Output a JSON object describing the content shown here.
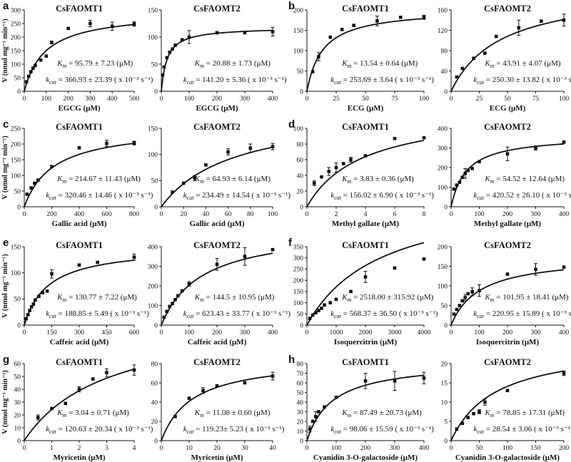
{
  "chart_data": [
    {
      "panel_label": "a",
      "type": "scatter",
      "title": "CsFAOMT1",
      "xlabel": "EGCG  (μM)",
      "ylabel": "V (nmol mg⁻¹ min⁻¹)",
      "xlim": [
        0,
        500
      ],
      "ylim": [
        0,
        300
      ],
      "xticks": [
        0,
        100,
        200,
        300,
        400,
        500
      ],
      "yticks": [
        0,
        50,
        100,
        150,
        200,
        250,
        300
      ],
      "x": [
        10,
        20,
        30,
        40,
        50,
        75,
        100,
        125,
        200,
        300,
        400,
        500
      ],
      "y": [
        35,
        55,
        72,
        85,
        95,
        115,
        130,
        180,
        232,
        250,
        240,
        248
      ],
      "err": [
        0,
        0,
        0,
        0,
        0,
        0,
        0,
        5,
        0,
        12,
        15,
        8
      ],
      "fit": {
        "vmax": 293.5,
        "km": 95.79
      },
      "km_text": "= 95.79 ± 7.23 (μM)",
      "kcat_text": "= 366.93 ± 23.39 ( x 10⁻³ s⁻¹)"
    },
    {
      "panel_label": "",
      "type": "scatter",
      "title": "CsFAOMT2",
      "xlabel": "EGCG  (μM)",
      "ylabel": "",
      "xlim": [
        0,
        400
      ],
      "ylim": [
        0,
        150
      ],
      "xticks": [
        0,
        100,
        200,
        300,
        400
      ],
      "yticks": [
        0,
        50,
        100,
        150
      ],
      "x": [
        5,
        10,
        20,
        30,
        40,
        50,
        75,
        100,
        200,
        300,
        400
      ],
      "y": [
        30,
        45,
        62,
        72,
        78,
        85,
        95,
        100,
        108,
        108,
        110
      ],
      "err": [
        0,
        0,
        0,
        0,
        0,
        0,
        0,
        12,
        0,
        0,
        8
      ],
      "fit": {
        "vmax": 118.2,
        "km": 20.88
      },
      "km_text": "= 20.88 ± 1.73 (μM)",
      "kcat_text": "= 141.20 ± 5.36 ( x 10⁻³ s⁻¹)"
    },
    {
      "panel_label": "b",
      "type": "scatter",
      "title": "CsFAOMT1",
      "xlabel": "ECG  (μM)",
      "ylabel": "",
      "xlim": [
        0,
        100
      ],
      "ylim": [
        0,
        200
      ],
      "xticks": [
        0,
        25,
        50,
        75,
        100
      ],
      "yticks": [
        0,
        50,
        100,
        150,
        200
      ],
      "x": [
        5,
        10,
        20,
        30,
        40,
        60,
        80,
        100
      ],
      "y": [
        48,
        85,
        133,
        152,
        162,
        173,
        182,
        182
      ],
      "err": [
        0,
        10,
        0,
        0,
        0,
        12,
        0,
        5
      ],
      "fit": {
        "vmax": 203,
        "km": 13.54
      },
      "km_text": "= 13.54 ± 0.64 (μM)",
      "kcat_text": "= 253.69 ± 3.64 ( x 10⁻³ s⁻¹)"
    },
    {
      "panel_label": "",
      "type": "scatter",
      "title": "CsFAOMT2",
      "xlabel": "ECG  (μM)",
      "ylabel": "",
      "xlim": [
        0,
        100
      ],
      "ylim": [
        0,
        160
      ],
      "xticks": [
        0,
        25,
        50,
        75,
        100
      ],
      "yticks": [
        0,
        40,
        80,
        120,
        160
      ],
      "x": [
        5,
        10,
        20,
        30,
        40,
        60,
        80,
        100
      ],
      "y": [
        28,
        45,
        65,
        75,
        108,
        125,
        138,
        140
      ],
      "err": [
        0,
        0,
        0,
        0,
        0,
        15,
        0,
        12
      ],
      "fit": {
        "vmax": 203,
        "km": 43.91
      },
      "km_text": "= 43.91 ± 4.07 (μM)",
      "kcat_text": "= 250.30 ± 13.82 ( x 10⁻³ s⁻¹)"
    },
    {
      "panel_label": "c",
      "type": "scatter",
      "title": "CsFAOMT1",
      "xlabel": "Gallic acid  (μM)",
      "ylabel": "V (nmol mg⁻¹ min⁻¹)",
      "xlim": [
        0,
        800
      ],
      "ylim": [
        0,
        250
      ],
      "xticks": [
        0,
        200,
        400,
        600,
        800
      ],
      "yticks": [
        0,
        50,
        100,
        150,
        200,
        250
      ],
      "x": [
        20,
        50,
        75,
        100,
        200,
        400,
        600,
        800
      ],
      "y": [
        40,
        60,
        75,
        85,
        128,
        188,
        202,
        203
      ],
      "err": [
        0,
        0,
        0,
        0,
        0,
        0,
        10,
        6
      ],
      "fit": {
        "vmax": 256.6,
        "km": 214.67
      },
      "km_text": "= 214.67 ± 11.43 (μM)",
      "kcat_text": "= 320.46 ± 14.46 ( x 10⁻³ s⁻¹)"
    },
    {
      "panel_label": "",
      "type": "scatter",
      "title": "CsFAOMT2",
      "xlabel": "Gallic acid  (μM)",
      "ylabel": "",
      "xlim": [
        0,
        100
      ],
      "ylim": [
        0,
        150
      ],
      "xticks": [
        0,
        20,
        40,
        60,
        80,
        100
      ],
      "yticks": [
        0,
        50,
        100,
        150
      ],
      "x": [
        10,
        20,
        30,
        40,
        60,
        80,
        100
      ],
      "y": [
        28,
        45,
        55,
        80,
        105,
        112,
        115
      ],
      "err": [
        0,
        0,
        5,
        0,
        6,
        8,
        6
      ],
      "fit": {
        "vmax": 187.8,
        "km": 64.93
      },
      "km_text": "= 64.93 ± 6.14 (μM)",
      "kcat_text": "= 234.49 ± 14.54 ( x 10⁻³ s⁻¹)"
    },
    {
      "panel_label": "d",
      "type": "scatter",
      "title": "CsFAOMT1",
      "xlabel": "Methyl gallate  (μM)",
      "ylabel": "",
      "xlim": [
        0,
        8
      ],
      "ylim": [
        0,
        100
      ],
      "xticks": [
        0,
        2,
        4,
        6,
        8
      ],
      "yticks": [
        0,
        20,
        40,
        60,
        80,
        100
      ],
      "x": [
        0.5,
        1,
        1.5,
        2,
        2.5,
        3,
        4,
        6,
        8
      ],
      "y": [
        30,
        38,
        45,
        50,
        55,
        60,
        65,
        87,
        88
      ],
      "err": [
        3,
        0,
        5,
        6,
        0,
        3,
        0,
        0,
        0
      ],
      "fit": {
        "vmax": 125,
        "km": 3.83
      },
      "km_text": "= 3.83 ± 0.36 (μM)",
      "kcat_text": "= 156.02 ± 6.90 ( x 10⁻³ s⁻¹)"
    },
    {
      "panel_label": "",
      "type": "scatter",
      "title": "CsFAOMT2",
      "xlabel": "Methyl gallate  (μM)",
      "ylabel": "",
      "xlim": [
        0,
        400
      ],
      "ylim": [
        0,
        400
      ],
      "xticks": [
        0,
        100,
        200,
        300,
        400
      ],
      "yticks": [
        0,
        100,
        200,
        300,
        400
      ],
      "x": [
        10,
        20,
        30,
        40,
        50,
        60,
        75,
        100,
        200,
        300,
        400
      ],
      "y": [
        90,
        110,
        125,
        150,
        170,
        185,
        195,
        230,
        270,
        300,
        330
      ],
      "err": [
        0,
        0,
        0,
        0,
        25,
        0,
        0,
        0,
        35,
        10,
        0
      ],
      "fit": {
        "vmax": 364,
        "km": 54.52
      },
      "km_text": "= 54.52 ± 12.64 (μM)",
      "kcat_text": "= 420.52 ± 26.10 ( x 10⁻³ s⁻¹)"
    },
    {
      "panel_label": "e",
      "type": "scatter",
      "title": "CsFAOMT1",
      "xlabel": "Caffeic acid  (μM)",
      "ylabel": "V (nmol mg⁻¹ min⁻¹)",
      "xlim": [
        0,
        600
      ],
      "ylim": [
        0,
        150
      ],
      "xticks": [
        0,
        150,
        300,
        450,
        600
      ],
      "yticks": [
        0,
        50,
        100,
        150
      ],
      "x": [
        10,
        20,
        30,
        40,
        50,
        60,
        80,
        100,
        125,
        150,
        300,
        400,
        600
      ],
      "y": [
        12,
        20,
        28,
        35,
        40,
        48,
        55,
        62,
        65,
        98,
        115,
        120,
        130
      ],
      "err": [
        0,
        0,
        0,
        0,
        0,
        0,
        0,
        0,
        0,
        8,
        0,
        0,
        6
      ],
      "fit": {
        "vmax": 151.2,
        "km": 130.77
      },
      "km_text": "= 130.77 ± 7.22 (μM)",
      "kcat_text": "= 188.85 ± 5.49 ( x 10⁻³ s⁻¹)"
    },
    {
      "panel_label": "",
      "type": "scatter",
      "title": "CsFAOMT2",
      "xlabel": "Caffeic acid  (μM)",
      "ylabel": "",
      "xlim": [
        0,
        400
      ],
      "ylim": [
        0,
        400
      ],
      "xticks": [
        0,
        100,
        200,
        300,
        400
      ],
      "yticks": [
        0,
        100,
        200,
        300,
        400
      ],
      "x": [
        10,
        20,
        30,
        40,
        50,
        60,
        75,
        100,
        200,
        300,
        400
      ],
      "y": [
        40,
        70,
        95,
        110,
        130,
        150,
        175,
        210,
        310,
        350,
        385
      ],
      "err": [
        0,
        0,
        0,
        0,
        0,
        0,
        0,
        12,
        30,
        45,
        0
      ],
      "fit": {
        "vmax": 499,
        "km": 144.5
      },
      "km_text": "= 144.5 ± 10.95 (μM)",
      "kcat_text": "= 623.43 ± 33.77 ( x 10⁻³ s⁻¹)"
    },
    {
      "panel_label": "f",
      "type": "scatter",
      "title": "CsFAOMT1",
      "xlabel": "Isoquercitrin  (μM)",
      "ylabel": "",
      "xlim": [
        0,
        4000
      ],
      "ylim": [
        0,
        350
      ],
      "xticks": [
        0,
        1000,
        2000,
        3000,
        4000
      ],
      "yticks": [
        0,
        50,
        100,
        150,
        200,
        250,
        300,
        350
      ],
      "x": [
        100,
        200,
        300,
        400,
        500,
        600,
        800,
        1000,
        1500,
        2000,
        3000,
        4000
      ],
      "y": [
        30,
        45,
        55,
        65,
        75,
        90,
        100,
        115,
        150,
        215,
        255,
        295
      ],
      "err": [
        0,
        0,
        0,
        0,
        0,
        0,
        0,
        0,
        0,
        25,
        0,
        0
      ],
      "fit": {
        "vmax": 600,
        "km": 2518
      },
      "km_text": "= 2518.00 ± 315.92 (μM)",
      "kcat_text": "= 568.37 ± 36.50 ( x 10⁻³ s⁻¹)"
    },
    {
      "panel_label": "",
      "type": "scatter",
      "title": "CsFAOMT2",
      "xlabel": "Isoquercitrin  (μM)",
      "ylabel": "",
      "xlim": [
        0,
        400
      ],
      "ylim": [
        0,
        200
      ],
      "xticks": [
        0,
        100,
        200,
        300,
        400
      ],
      "yticks": [
        0,
        50,
        100,
        150,
        200
      ],
      "x": [
        10,
        20,
        30,
        40,
        50,
        60,
        75,
        100,
        200,
        300,
        400
      ],
      "y": [
        28,
        40,
        50,
        62,
        70,
        80,
        85,
        88,
        130,
        142,
        148
      ],
      "err": [
        0,
        0,
        0,
        0,
        8,
        0,
        10,
        15,
        0,
        15,
        0
      ],
      "fit": {
        "vmax": 177,
        "km": 101.95
      },
      "km_text": "= 101.95 ± 18.41 (μM)",
      "kcat_text": "= 220.95 ± 15.89 ( x 10⁻³ s⁻¹)"
    },
    {
      "panel_label": "g",
      "type": "scatter",
      "title": "CsFAOMT1",
      "xlabel": "Myricetin  (μM)",
      "ylabel": "V (nmol mg⁻¹ min⁻¹)",
      "xlim": [
        0,
        4
      ],
      "ylim": [
        0,
        60
      ],
      "xticks": [
        0,
        1,
        2,
        3,
        4
      ],
      "yticks": [
        0,
        10,
        20,
        30,
        40,
        50,
        60
      ],
      "x": [
        0.5,
        1,
        1.5,
        2,
        2.5,
        3,
        4
      ],
      "y": [
        18,
        25,
        29,
        40,
        48,
        53,
        55
      ],
      "err": [
        2,
        0,
        0,
        2,
        0,
        3,
        4
      ],
      "fit": {
        "vmax": 98,
        "km": 3.04
      },
      "km_text": "= 3.04 ± 0.71 (μM)",
      "kcat_text": "= 120.63 ± 20.34 ( x 10⁻³ s⁻¹)"
    },
    {
      "panel_label": "",
      "type": "scatter",
      "title": "CsFAOMT2",
      "xlabel": "Myricetin  (μM)",
      "ylabel": "",
      "xlim": [
        0,
        40
      ],
      "ylim": [
        0,
        80
      ],
      "xticks": [
        0,
        10,
        20,
        30,
        40
      ],
      "yticks": [
        0,
        20,
        40,
        60,
        80
      ],
      "x": [
        5,
        10,
        15,
        20,
        30,
        40
      ],
      "y": [
        25,
        44,
        52,
        57,
        60,
        67
      ],
      "err": [
        0,
        0,
        3,
        0,
        0,
        4
      ],
      "fit": {
        "vmax": 86,
        "km": 11.08
      },
      "km_text": "= 11.08 ± 0.60 (μM)",
      "kcat_text": "= 119.23± 5.23 ( x 10⁻³ s⁻¹)"
    },
    {
      "panel_label": "h",
      "type": "scatter",
      "title": "CsFAOMT1",
      "xlabel": "Cyanidin 3-O-galactoside  (μM)",
      "ylabel": "",
      "xlim": [
        0,
        400
      ],
      "ylim": [
        0,
        80
      ],
      "xticks": [
        0,
        100,
        200,
        300,
        400
      ],
      "yticks": [
        0,
        10,
        20,
        30,
        40,
        50,
        60,
        70,
        80
      ],
      "x": [
        10,
        20,
        30,
        40,
        60,
        100,
        200,
        300,
        400
      ],
      "y": [
        12,
        20,
        25,
        30,
        35,
        45,
        62,
        62,
        65
      ],
      "err": [
        3,
        0,
        5,
        0,
        0,
        0,
        8,
        10,
        6
      ],
      "fit": {
        "vmax": 82.7,
        "km": 87.49
      },
      "km_text": "= 87.49 ± 20.73 (μM)",
      "kcat_text": "= 98.06 ± 15.59 ( x 10⁻³ s⁻¹)"
    },
    {
      "panel_label": "",
      "type": "scatter",
      "title": "CsFAOMT2",
      "xlabel": "Cyanidin 3-O-galactoside  (μM)",
      "ylabel": "",
      "xlim": [
        0,
        200
      ],
      "ylim": [
        0,
        20
      ],
      "xticks": [
        0,
        50,
        100,
        150,
        200
      ],
      "yticks": [
        0,
        5,
        10,
        15,
        20
      ],
      "x": [
        10,
        20,
        30,
        40,
        50,
        60,
        100,
        200
      ],
      "y": [
        3,
        4.5,
        6,
        7,
        7.5,
        10,
        13,
        17.5
      ],
      "err": [
        0,
        0,
        0,
        0,
        0.5,
        0.8,
        0,
        0.6
      ],
      "fit": {
        "vmax": 25.2,
        "km": 78.85
      },
      "km_text": "= 78.85 ± 17.31 (μM)",
      "kcat_text": "= 28.54 ± 3.06 ( x 10⁻³ s⁻¹)"
    }
  ],
  "symbols": {
    "km": "K",
    "km_sub": "m",
    "kcat": "k",
    "kcat_sub": "cat"
  }
}
